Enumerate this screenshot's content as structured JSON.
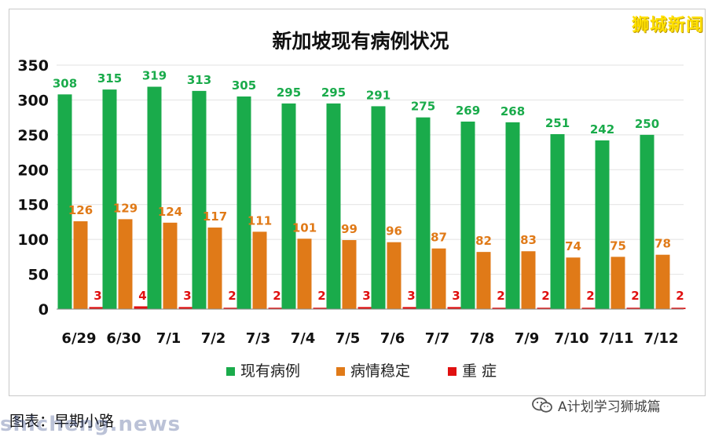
{
  "brand": "狮城新闻",
  "caption": "图表：早期小路",
  "watermark": "shicheng.news",
  "wechat_label": "A计划学习狮城篇",
  "chart_data": {
    "type": "bar",
    "title": "新加坡现有病例状况",
    "categories": [
      "6/29",
      "6/30",
      "7/1",
      "7/2",
      "7/3",
      "7/4",
      "7/5",
      "7/6",
      "7/7",
      "7/8",
      "7/9",
      "7/10",
      "7/11",
      "7/12"
    ],
    "series": [
      {
        "name": "现有病例",
        "color": "#1aab4b",
        "label_color": "#1aab4b",
        "values": [
          308,
          315,
          319,
          313,
          305,
          295,
          295,
          291,
          275,
          269,
          268,
          251,
          242,
          250
        ]
      },
      {
        "name": "病情稳定",
        "color": "#e07a18",
        "label_color": "#e07a18",
        "values": [
          126,
          129,
          124,
          117,
          111,
          101,
          99,
          96,
          87,
          82,
          83,
          74,
          75,
          78
        ]
      },
      {
        "name": "重 症",
        "color": "#e01010",
        "label_color": "#e01010",
        "values": [
          3,
          4,
          3,
          2,
          2,
          2,
          3,
          3,
          3,
          2,
          2,
          2,
          2,
          2
        ]
      }
    ],
    "yticks": [
      0,
      50,
      100,
      150,
      200,
      250,
      300,
      350
    ],
    "ylim": [
      0,
      350
    ],
    "grid": true,
    "legend": "bottom"
  }
}
